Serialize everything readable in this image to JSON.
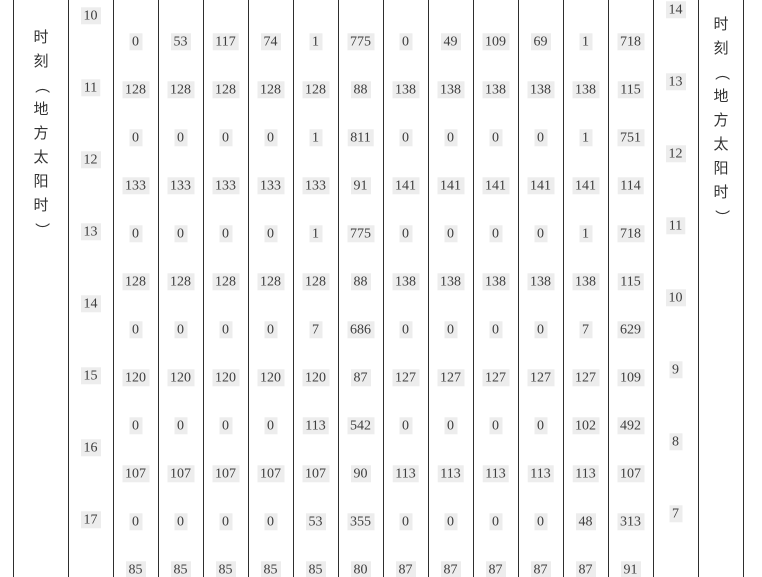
{
  "colors": {
    "line": "#2e2e2e",
    "text": "#3d3d3d",
    "cjk_text": "#333333",
    "cell_highlight": "#ededed",
    "background": "#ffffff"
  },
  "left_axis": {
    "label": "时刻（地方太阳时）",
    "hours": [
      "10",
      "11",
      "12",
      "13",
      "14",
      "15",
      "16",
      "17"
    ]
  },
  "right_axis": {
    "label": "时刻（地方太阳时）",
    "hours": [
      "14",
      "13",
      "12",
      "11",
      "10",
      "9",
      "8",
      "7"
    ]
  },
  "table": {
    "rows": [
      [
        "0",
        "53",
        "117",
        "74",
        "1",
        "775",
        "0",
        "49",
        "109",
        "69",
        "1",
        "718"
      ],
      [
        "128",
        "128",
        "128",
        "128",
        "128",
        "88",
        "138",
        "138",
        "138",
        "138",
        "138",
        "115"
      ],
      [
        "0",
        "0",
        "0",
        "0",
        "1",
        "811",
        "0",
        "0",
        "0",
        "0",
        "1",
        "751"
      ],
      [
        "133",
        "133",
        "133",
        "133",
        "133",
        "91",
        "141",
        "141",
        "141",
        "141",
        "141",
        "114"
      ],
      [
        "0",
        "0",
        "0",
        "0",
        "1",
        "775",
        "0",
        "0",
        "0",
        "0",
        "1",
        "718"
      ],
      [
        "128",
        "128",
        "128",
        "128",
        "128",
        "88",
        "138",
        "138",
        "138",
        "138",
        "138",
        "115"
      ],
      [
        "0",
        "0",
        "0",
        "0",
        "7",
        "686",
        "0",
        "0",
        "0",
        "0",
        "7",
        "629"
      ],
      [
        "120",
        "120",
        "120",
        "120",
        "120",
        "87",
        "127",
        "127",
        "127",
        "127",
        "127",
        "109"
      ],
      [
        "0",
        "0",
        "0",
        "0",
        "113",
        "542",
        "0",
        "0",
        "0",
        "0",
        "102",
        "492"
      ],
      [
        "107",
        "107",
        "107",
        "107",
        "107",
        "90",
        "113",
        "113",
        "113",
        "113",
        "113",
        "107"
      ],
      [
        "0",
        "0",
        "0",
        "0",
        "53",
        "355",
        "0",
        "0",
        "0",
        "0",
        "48",
        "313"
      ],
      [
        "85",
        "85",
        "85",
        "85",
        "85",
        "80",
        "87",
        "87",
        "87",
        "87",
        "87",
        "91"
      ]
    ]
  }
}
